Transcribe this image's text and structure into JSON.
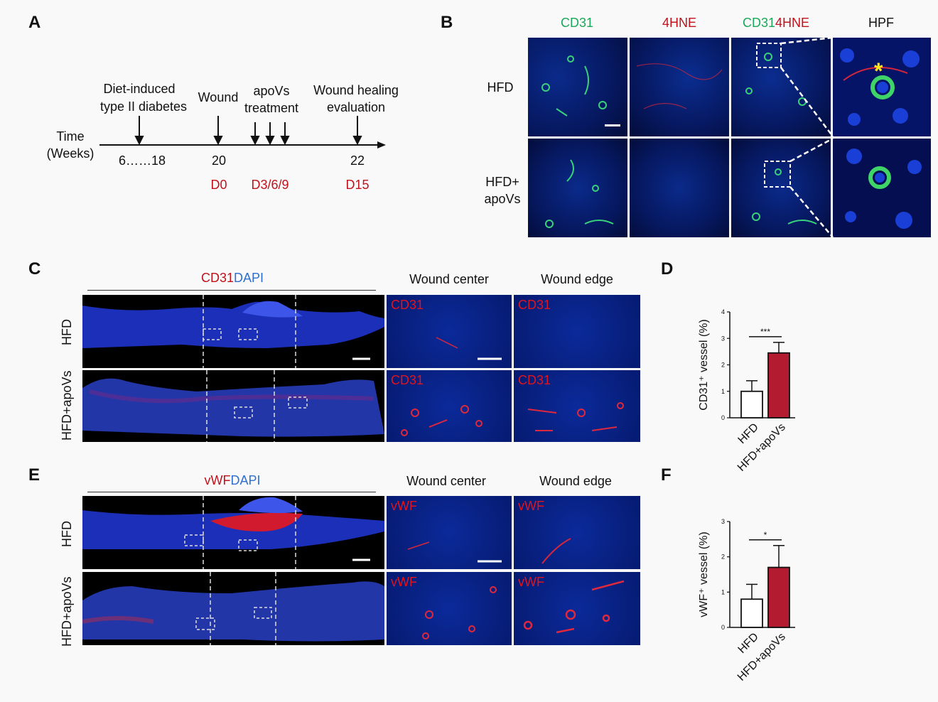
{
  "panels": {
    "a": "A",
    "b": "B",
    "c": "C",
    "d": "D",
    "e": "E",
    "f": "F"
  },
  "timeline": {
    "time_label_1": "Time",
    "time_label_2": "(Weeks)",
    "events": [
      {
        "line1": "Diet-induced",
        "line2": "type II diabetes"
      },
      {
        "line1": "Wound",
        "line2": ""
      },
      {
        "line1": "apoVs",
        "line2": "treatment"
      },
      {
        "line1": "Wound healing",
        "line2": "evaluation"
      }
    ],
    "ticks": [
      "6……18",
      "20",
      "22"
    ],
    "days": [
      "D0",
      "D3/6/9",
      "D15"
    ]
  },
  "panel_b": {
    "col_headers": [
      "CD31",
      "4HNE",
      "CD31",
      "4HNE",
      "HPF"
    ],
    "rows": [
      "HFD",
      "HFD+",
      "apoVs"
    ]
  },
  "panel_c": {
    "stain_red": "CD31",
    "stain_blue": "DAPI",
    "col_center": "Wound center",
    "col_edge": "Wound edge",
    "rows": [
      "HFD",
      "HFD+apoVs"
    ],
    "frame_label": "CD31"
  },
  "panel_e": {
    "stain_red": "vWF",
    "stain_blue": "DAPI",
    "col_center": "Wound center",
    "col_edge": "Wound edge",
    "rows": [
      "HFD",
      "HFD+apoVs"
    ],
    "frame_label": "vWF"
  },
  "chart_data": [
    {
      "type": "bar",
      "categories": [
        "HFD",
        "HFD+apoVs"
      ],
      "values": [
        1.0,
        2.45
      ],
      "errors": [
        0.4,
        0.4
      ],
      "ylabel": "CD31⁺ vessel (%)",
      "ylim": [
        0,
        4
      ],
      "yticks": [
        "0",
        "1",
        "2",
        "3",
        "4"
      ],
      "significance": "***",
      "colors": [
        "#ffffff",
        "#b31b30"
      ]
    },
    {
      "type": "bar",
      "categories": [
        "HFD",
        "HFD+apoVs"
      ],
      "values": [
        0.8,
        1.7
      ],
      "errors": [
        0.42,
        0.62
      ],
      "ylabel": "vWF⁺ vessel (%)",
      "ylim": [
        0,
        3
      ],
      "yticks": [
        "0",
        "1",
        "2",
        "3"
      ],
      "significance": "*",
      "colors": [
        "#ffffff",
        "#b31b30"
      ]
    }
  ]
}
